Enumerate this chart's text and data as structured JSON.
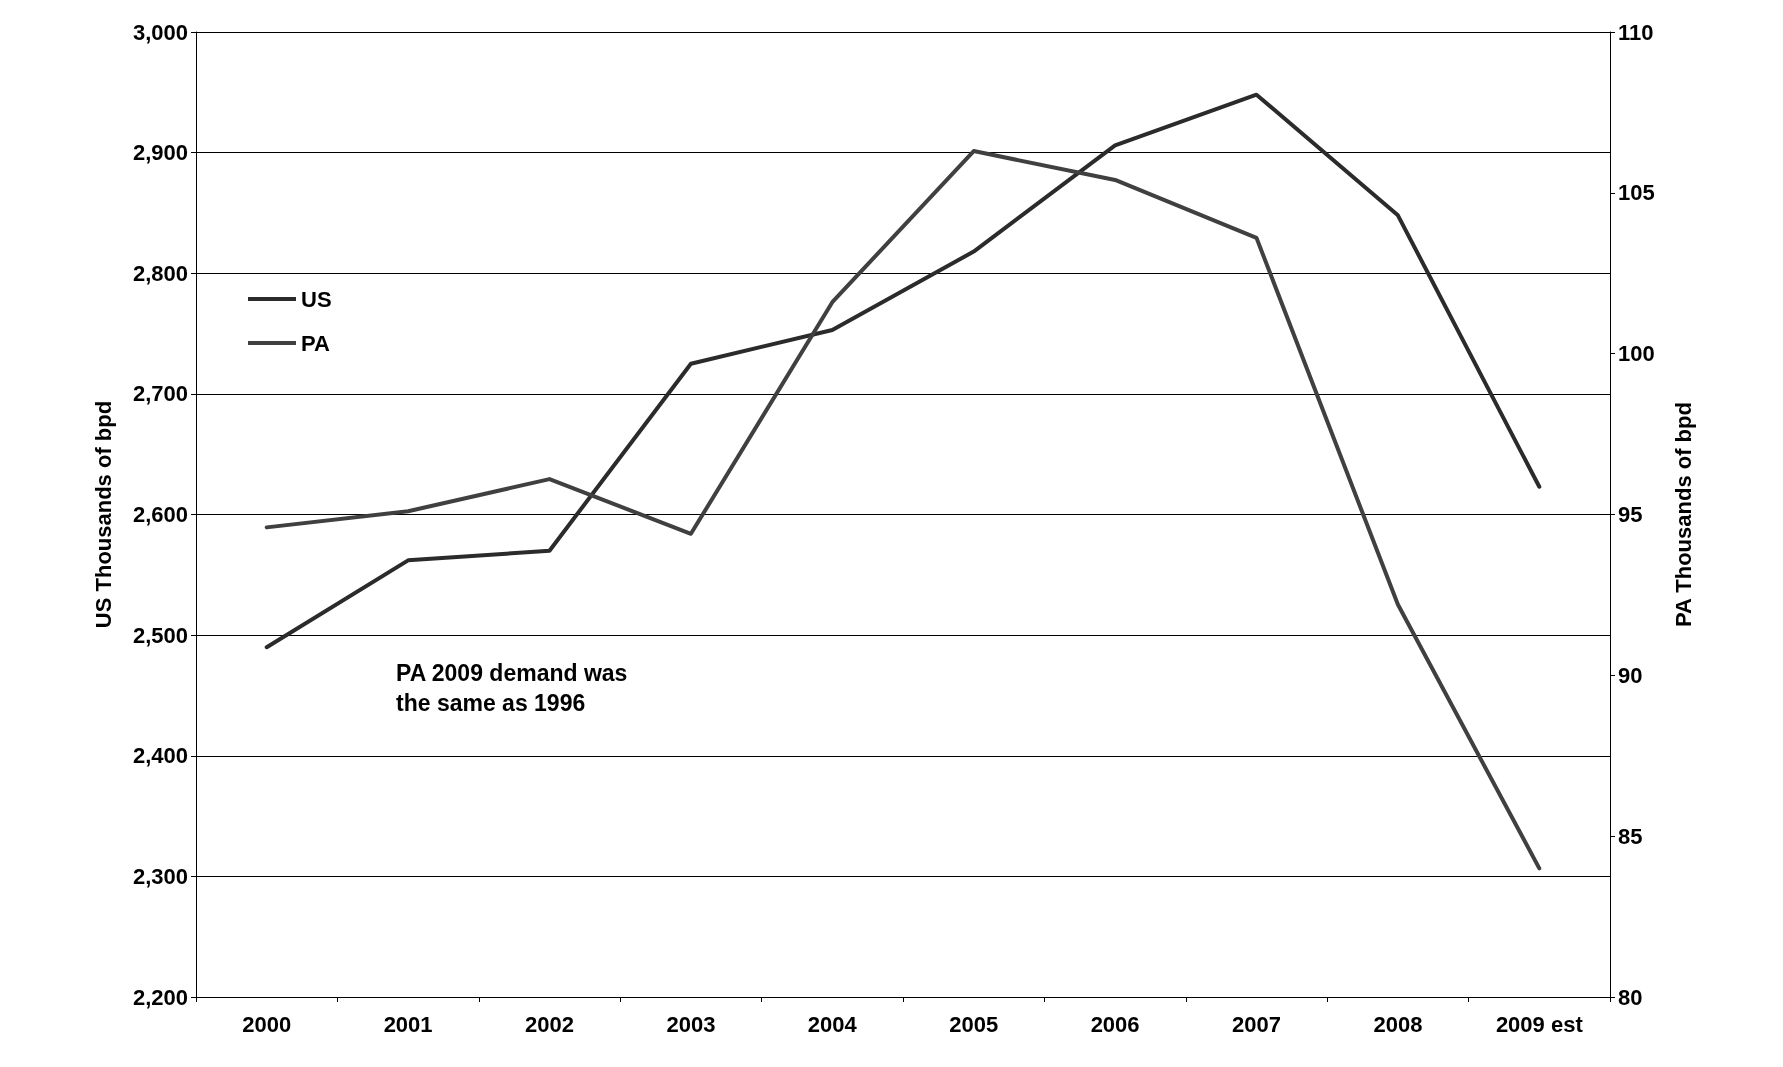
{
  "chart_data": {
    "type": "line",
    "ylabel": "US Thousands of bpd",
    "y2label": "PA Thousands of bpd",
    "categories": [
      "2000",
      "2001",
      "2002",
      "2003",
      "2004",
      "2005",
      "2006",
      "2007",
      "2008",
      "2009 est"
    ],
    "series": [
      {
        "name": "US",
        "color": "#2b2b2b",
        "values": [
          2490,
          2562,
          2570,
          2725,
          2753,
          2818,
          2906,
          2948,
          2848,
          2623
        ]
      },
      {
        "name": "PA",
        "color": "#404040",
        "axis": "y2",
        "values": [
          94.6,
          95.1,
          96.1,
          94.4,
          101.6,
          106.3,
          105.4,
          103.6,
          92.2,
          84.0
        ]
      }
    ],
    "ylim": [
      2200,
      3000
    ],
    "yticks": [
      {
        "value": 2200,
        "label": "2,200"
      },
      {
        "value": 2300,
        "label": "2,300"
      },
      {
        "value": 2400,
        "label": "2,400"
      },
      {
        "value": 2500,
        "label": "2,500"
      },
      {
        "value": 2600,
        "label": "2,600"
      },
      {
        "value": 2700,
        "label": "2,700"
      },
      {
        "value": 2800,
        "label": "2,800"
      },
      {
        "value": 2900,
        "label": "2,900"
      },
      {
        "value": 3000,
        "label": "3,000"
      }
    ],
    "y2lim": [
      80,
      110
    ],
    "y2ticks": [
      80,
      85,
      90,
      95,
      100,
      105,
      110
    ],
    "grid": "y",
    "legend": "top left",
    "marker": "none",
    "line_style": "solid",
    "annotations": [
      "PA 2009 demand was the same as 1996"
    ]
  }
}
